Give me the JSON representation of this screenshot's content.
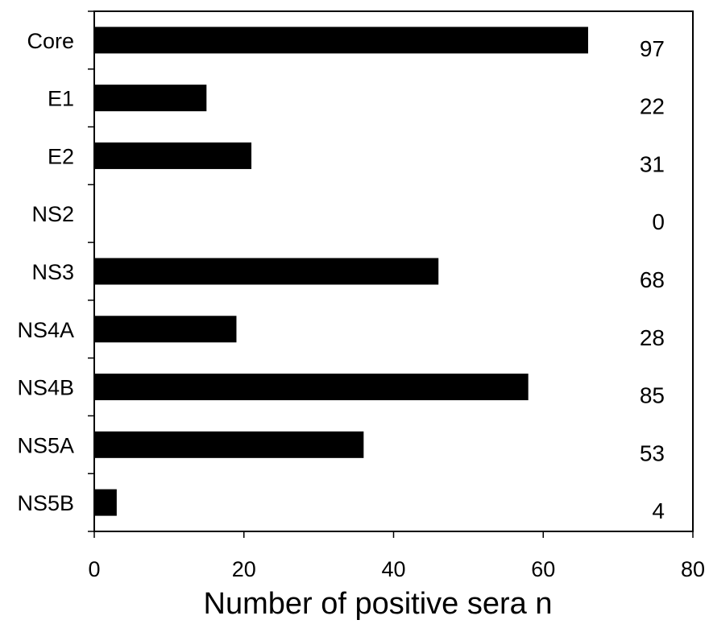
{
  "chart_data": {
    "type": "bar",
    "orientation": "horizontal",
    "categories": [
      "Core",
      "E1",
      "E2",
      "NS2",
      "NS3",
      "NS4A",
      "NS4B",
      "NS5A",
      "NS5B"
    ],
    "values": [
      66,
      15,
      21,
      0,
      46,
      19,
      58,
      36,
      3
    ],
    "data_labels": [
      "97",
      "22",
      "31",
      "0",
      "68",
      "28",
      "85",
      "53",
      "4"
    ],
    "xlim": [
      0,
      80
    ],
    "x_ticks": [
      0,
      20,
      40,
      60,
      80
    ],
    "xlabel": "Number of positive sera n",
    "ylabel": "",
    "title": "",
    "grid": false,
    "bar_color": "#000000"
  }
}
